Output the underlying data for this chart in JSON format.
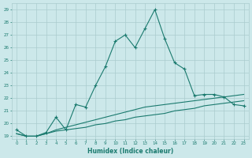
{
  "xlabel": "Humidex (Indice chaleur)",
  "xlim": [
    -0.5,
    23.5
  ],
  "ylim": [
    18.8,
    29.5
  ],
  "yticks": [
    19,
    20,
    21,
    22,
    23,
    24,
    25,
    26,
    27,
    28,
    29
  ],
  "xticks": [
    0,
    1,
    2,
    3,
    4,
    5,
    6,
    7,
    8,
    9,
    10,
    11,
    12,
    13,
    14,
    15,
    16,
    17,
    18,
    19,
    20,
    21,
    22,
    23
  ],
  "bg_color": "#cce8ea",
  "grid_color": "#aaccce",
  "line_color": "#1a7a6e",
  "series1": {
    "x": [
      0,
      1,
      2,
      3,
      4,
      5,
      6,
      7,
      8,
      9,
      10,
      11,
      12,
      13,
      14,
      15,
      16,
      17,
      18,
      19,
      20,
      21,
      22,
      23
    ],
    "y": [
      19.5,
      19.0,
      19.0,
      19.3,
      20.5,
      19.5,
      21.5,
      21.3,
      23.0,
      24.5,
      26.5,
      27.0,
      26.0,
      27.5,
      29.0,
      26.7,
      24.8,
      24.3,
      22.2,
      22.3,
      22.3,
      22.1,
      21.5,
      21.4
    ]
  },
  "series2": {
    "x": [
      0,
      1,
      2,
      3,
      4,
      5,
      6,
      7,
      8,
      9,
      10,
      11,
      12,
      13,
      14,
      15,
      16,
      17,
      18,
      19,
      20,
      21,
      22,
      23
    ],
    "y": [
      19.2,
      19.0,
      19.0,
      19.2,
      19.4,
      19.5,
      19.6,
      19.7,
      19.9,
      20.0,
      20.2,
      20.3,
      20.5,
      20.6,
      20.7,
      20.8,
      21.0,
      21.1,
      21.2,
      21.4,
      21.5,
      21.6,
      21.7,
      21.8
    ]
  },
  "series3": {
    "x": [
      0,
      1,
      2,
      3,
      4,
      5,
      6,
      7,
      8,
      9,
      10,
      11,
      12,
      13,
      14,
      15,
      16,
      17,
      18,
      19,
      20,
      21,
      22,
      23
    ],
    "y": [
      19.2,
      19.0,
      19.0,
      19.2,
      19.5,
      19.7,
      19.9,
      20.1,
      20.3,
      20.5,
      20.7,
      20.9,
      21.1,
      21.3,
      21.4,
      21.5,
      21.6,
      21.7,
      21.8,
      21.9,
      22.0,
      22.1,
      22.2,
      22.3
    ]
  }
}
